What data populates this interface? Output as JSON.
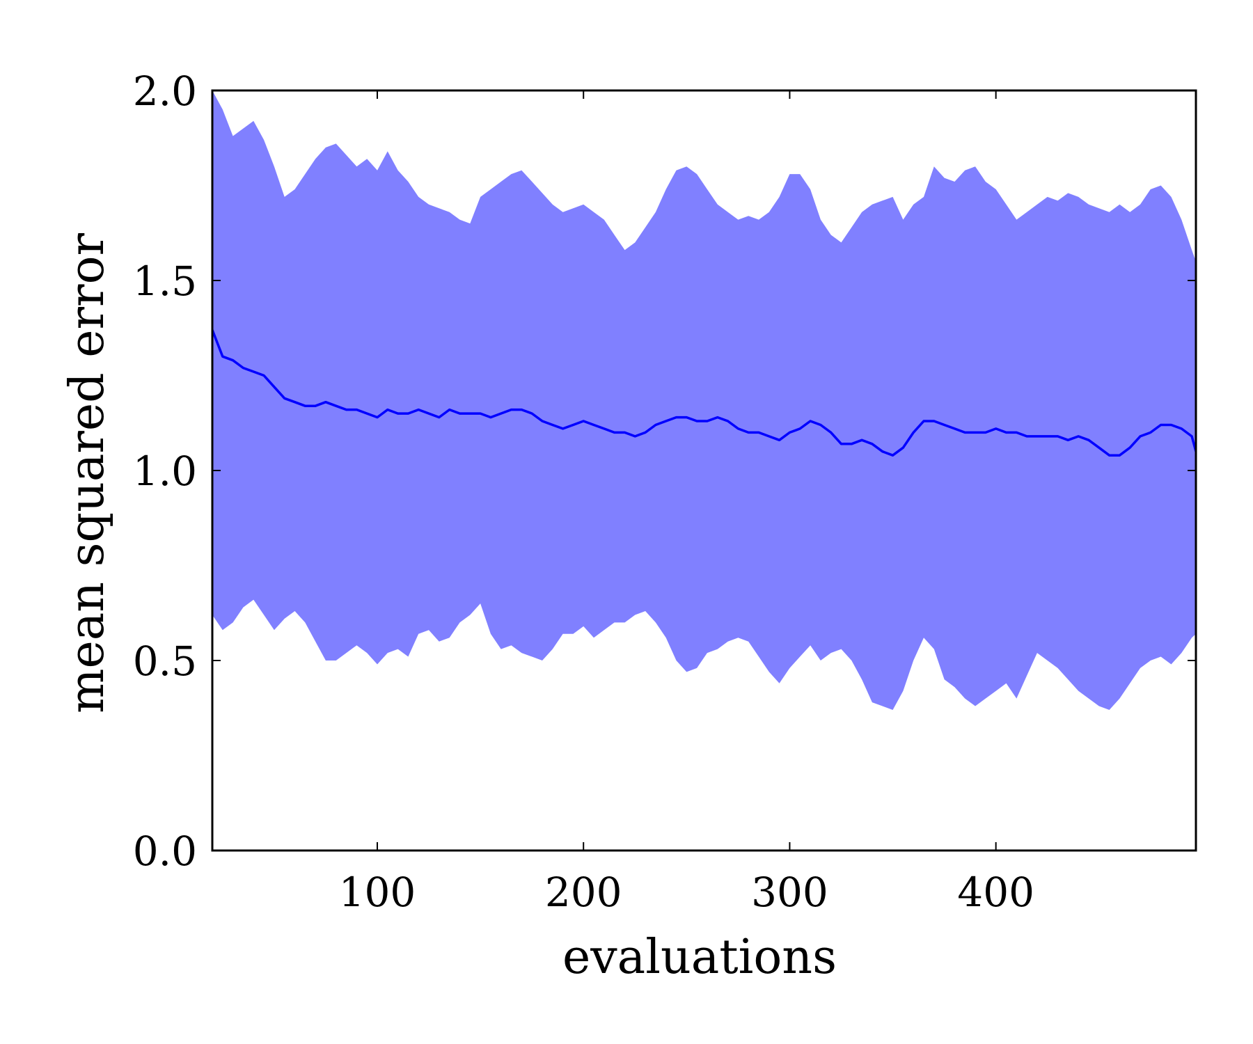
{
  "chart_data": {
    "type": "line",
    "title": "",
    "xlabel": "evaluations",
    "ylabel": "mean squared error",
    "xlim": [
      20,
      497
    ],
    "ylim": [
      0.0,
      2.0
    ],
    "xticks": [
      100,
      200,
      300,
      400
    ],
    "xtick_labels": [
      "100",
      "200",
      "300",
      "400"
    ],
    "yticks": [
      0.0,
      0.5,
      1.0,
      1.5,
      2.0
    ],
    "ytick_labels": [
      "0.0",
      "0.5",
      "1.0",
      "1.5",
      "2.0"
    ],
    "grid": false,
    "legend": "none",
    "colors": {
      "line": "#0000ff",
      "band": "#8080ff",
      "axes": "#000000"
    },
    "x": [
      20,
      25,
      30,
      35,
      40,
      45,
      50,
      55,
      60,
      65,
      70,
      75,
      80,
      85,
      90,
      95,
      100,
      105,
      110,
      115,
      120,
      125,
      130,
      135,
      140,
      145,
      150,
      155,
      160,
      165,
      170,
      175,
      180,
      185,
      190,
      195,
      200,
      205,
      210,
      215,
      220,
      225,
      230,
      235,
      240,
      245,
      250,
      255,
      260,
      265,
      270,
      275,
      280,
      285,
      290,
      295,
      300,
      305,
      310,
      315,
      320,
      325,
      330,
      335,
      340,
      345,
      350,
      355,
      360,
      365,
      370,
      375,
      380,
      385,
      390,
      395,
      400,
      405,
      410,
      415,
      420,
      425,
      430,
      435,
      440,
      445,
      450,
      455,
      460,
      465,
      470,
      475,
      480,
      485,
      490,
      495,
      497
    ],
    "series": [
      {
        "role": "mean",
        "values": [
          1.37,
          1.3,
          1.29,
          1.27,
          1.26,
          1.25,
          1.22,
          1.19,
          1.18,
          1.17,
          1.17,
          1.18,
          1.17,
          1.16,
          1.16,
          1.15,
          1.14,
          1.16,
          1.15,
          1.15,
          1.16,
          1.15,
          1.14,
          1.16,
          1.15,
          1.15,
          1.15,
          1.14,
          1.15,
          1.16,
          1.16,
          1.15,
          1.13,
          1.12,
          1.11,
          1.12,
          1.13,
          1.12,
          1.11,
          1.1,
          1.1,
          1.09,
          1.1,
          1.12,
          1.13,
          1.14,
          1.14,
          1.13,
          1.13,
          1.14,
          1.13,
          1.11,
          1.1,
          1.1,
          1.09,
          1.08,
          1.1,
          1.11,
          1.13,
          1.12,
          1.1,
          1.07,
          1.07,
          1.08,
          1.07,
          1.05,
          1.04,
          1.06,
          1.1,
          1.13,
          1.13,
          1.12,
          1.11,
          1.1,
          1.1,
          1.1,
          1.11,
          1.1,
          1.1,
          1.09,
          1.09,
          1.09,
          1.09,
          1.08,
          1.09,
          1.08,
          1.06,
          1.04,
          1.04,
          1.06,
          1.09,
          1.1,
          1.12,
          1.12,
          1.11,
          1.09,
          1.05
        ]
      },
      {
        "role": "upper",
        "values": [
          2.0,
          1.95,
          1.88,
          1.9,
          1.92,
          1.87,
          1.8,
          1.72,
          1.74,
          1.78,
          1.82,
          1.85,
          1.86,
          1.83,
          1.8,
          1.82,
          1.79,
          1.84,
          1.79,
          1.76,
          1.72,
          1.7,
          1.69,
          1.68,
          1.66,
          1.65,
          1.72,
          1.74,
          1.76,
          1.78,
          1.79,
          1.76,
          1.73,
          1.7,
          1.68,
          1.69,
          1.7,
          1.68,
          1.66,
          1.62,
          1.58,
          1.6,
          1.64,
          1.68,
          1.74,
          1.79,
          1.8,
          1.78,
          1.74,
          1.7,
          1.68,
          1.66,
          1.67,
          1.66,
          1.68,
          1.72,
          1.78,
          1.78,
          1.74,
          1.66,
          1.62,
          1.6,
          1.64,
          1.68,
          1.7,
          1.71,
          1.72,
          1.66,
          1.7,
          1.72,
          1.8,
          1.77,
          1.76,
          1.79,
          1.8,
          1.76,
          1.74,
          1.7,
          1.66,
          1.68,
          1.7,
          1.72,
          1.71,
          1.73,
          1.72,
          1.7,
          1.69,
          1.68,
          1.7,
          1.68,
          1.7,
          1.74,
          1.75,
          1.72,
          1.66,
          1.58,
          1.55
        ]
      },
      {
        "role": "lower",
        "values": [
          0.62,
          0.58,
          0.6,
          0.64,
          0.66,
          0.62,
          0.58,
          0.61,
          0.63,
          0.6,
          0.55,
          0.5,
          0.5,
          0.52,
          0.54,
          0.52,
          0.49,
          0.52,
          0.53,
          0.51,
          0.57,
          0.58,
          0.55,
          0.56,
          0.6,
          0.62,
          0.65,
          0.57,
          0.53,
          0.54,
          0.52,
          0.51,
          0.5,
          0.53,
          0.57,
          0.57,
          0.59,
          0.56,
          0.58,
          0.6,
          0.6,
          0.62,
          0.63,
          0.6,
          0.56,
          0.5,
          0.47,
          0.48,
          0.52,
          0.53,
          0.55,
          0.56,
          0.55,
          0.51,
          0.47,
          0.44,
          0.48,
          0.51,
          0.54,
          0.5,
          0.52,
          0.53,
          0.5,
          0.45,
          0.39,
          0.38,
          0.37,
          0.42,
          0.5,
          0.56,
          0.53,
          0.45,
          0.43,
          0.4,
          0.38,
          0.4,
          0.42,
          0.44,
          0.4,
          0.46,
          0.52,
          0.5,
          0.48,
          0.45,
          0.42,
          0.4,
          0.38,
          0.37,
          0.4,
          0.44,
          0.48,
          0.5,
          0.51,
          0.49,
          0.52,
          0.56,
          0.57
        ]
      }
    ]
  }
}
